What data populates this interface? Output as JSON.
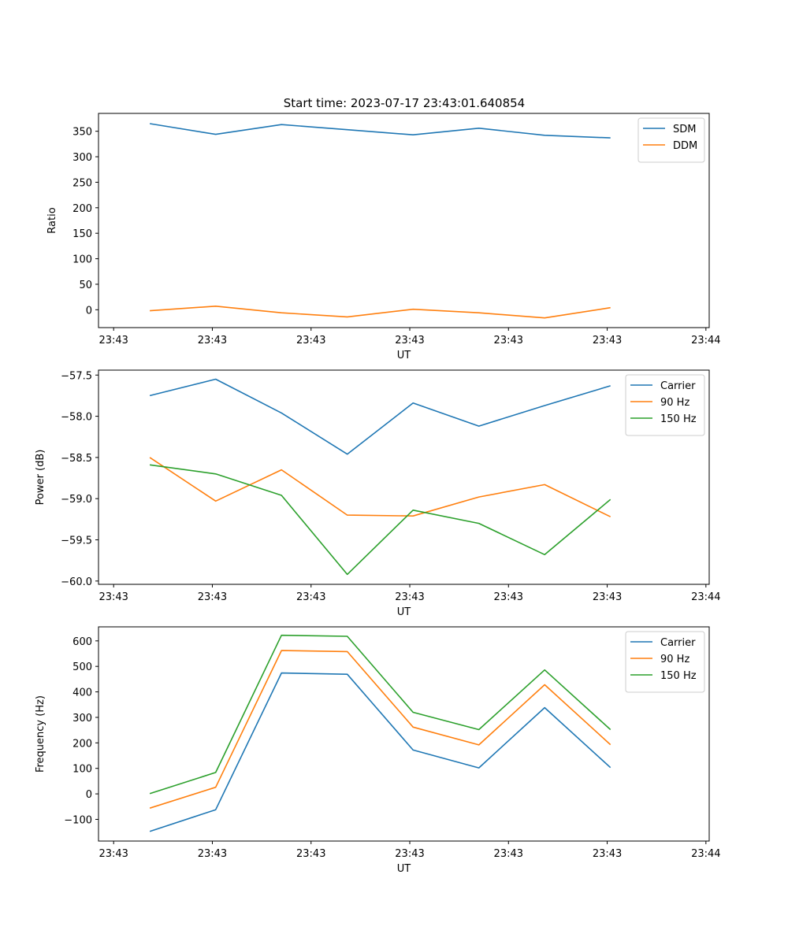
{
  "figure_title": "Start time: 2023-07-17 23:43:01.640854",
  "chart_data": [
    {
      "type": "line",
      "title": "Start time: 2023-07-17 23:43:01.640854",
      "xlabel": "UT",
      "ylabel": "Ratio",
      "legend_position": "top-right",
      "x": [
        1,
        2,
        3,
        4,
        5,
        6,
        7,
        8
      ],
      "xlim": [
        0.22,
        9.5
      ],
      "xticks": [
        0.45,
        1.95,
        3.45,
        4.95,
        6.45,
        7.95,
        9.45
      ],
      "xtick_labels": [
        "23:43",
        "23:43",
        "23:43",
        "23:43",
        "23:43",
        "23:43",
        "23:44"
      ],
      "ylim": [
        -35,
        385
      ],
      "yticks": [
        0,
        50,
        100,
        150,
        200,
        250,
        300,
        350
      ],
      "ytick_labels": [
        "0",
        "50",
        "100",
        "150",
        "200",
        "250",
        "300",
        "350"
      ],
      "series": [
        {
          "name": "SDM",
          "color": "#1f77b4",
          "values": [
            365,
            344,
            363,
            353,
            343,
            356,
            342,
            337
          ]
        },
        {
          "name": "DDM",
          "color": "#ff7f0e",
          "values": [
            -2,
            7,
            -6,
            -14,
            1,
            -6,
            -16,
            4
          ]
        }
      ]
    },
    {
      "type": "line",
      "title": "",
      "xlabel": "UT",
      "ylabel": "Power (dB)",
      "legend_position": "top-right",
      "x": [
        1,
        2,
        3,
        4,
        5,
        6,
        7,
        8
      ],
      "xlim": [
        0.22,
        9.5
      ],
      "xticks": [
        0.45,
        1.95,
        3.45,
        4.95,
        6.45,
        7.95,
        9.45
      ],
      "xtick_labels": [
        "23:43",
        "23:43",
        "23:43",
        "23:43",
        "23:43",
        "23:43",
        "23:44"
      ],
      "ylim": [
        -60.04,
        -57.44
      ],
      "yticks": [
        -60.0,
        -59.5,
        -59.0,
        -58.5,
        -58.0,
        -57.5
      ],
      "ytick_labels": [
        "−60.0",
        "−59.5",
        "−59.0",
        "−58.5",
        "−58.0",
        "−57.5"
      ],
      "series": [
        {
          "name": "Carrier",
          "color": "#1f77b4",
          "values": [
            -57.75,
            -57.55,
            -57.96,
            -58.46,
            -57.84,
            -58.12,
            -57.87,
            -57.63
          ]
        },
        {
          "name": "90 Hz",
          "color": "#ff7f0e",
          "values": [
            -58.5,
            -59.03,
            -58.65,
            -59.2,
            -59.21,
            -58.98,
            -58.83,
            -59.22
          ]
        },
        {
          "name": "150 Hz",
          "color": "#2ca02c",
          "values": [
            -58.59,
            -58.7,
            -58.96,
            -59.92,
            -59.14,
            -59.3,
            -59.68,
            -59.01
          ]
        }
      ]
    },
    {
      "type": "line",
      "title": "",
      "xlabel": "UT",
      "ylabel": "Frequency (Hz)",
      "legend_position": "top-right",
      "x": [
        1,
        2,
        3,
        4,
        5,
        6,
        7,
        8
      ],
      "xlim": [
        0.22,
        9.5
      ],
      "xticks": [
        0.45,
        1.95,
        3.45,
        4.95,
        6.45,
        7.95,
        9.45
      ],
      "xtick_labels": [
        "23:43",
        "23:43",
        "23:43",
        "23:43",
        "23:43",
        "23:43",
        "23:44"
      ],
      "ylim": [
        -185,
        655
      ],
      "yticks": [
        -100,
        0,
        100,
        200,
        300,
        400,
        500,
        600
      ],
      "ytick_labels": [
        "−100",
        "0",
        "100",
        "200",
        "300",
        "400",
        "500",
        "600"
      ],
      "series": [
        {
          "name": "Carrier",
          "color": "#1f77b4",
          "values": [
            -147,
            -62,
            474,
            469,
            172,
            102,
            338,
            103
          ]
        },
        {
          "name": "90 Hz",
          "color": "#ff7f0e",
          "values": [
            -56,
            26,
            562,
            558,
            262,
            192,
            428,
            193
          ]
        },
        {
          "name": "150 Hz",
          "color": "#2ca02c",
          "values": [
            1,
            84,
            622,
            618,
            320,
            252,
            486,
            252
          ]
        }
      ]
    }
  ]
}
